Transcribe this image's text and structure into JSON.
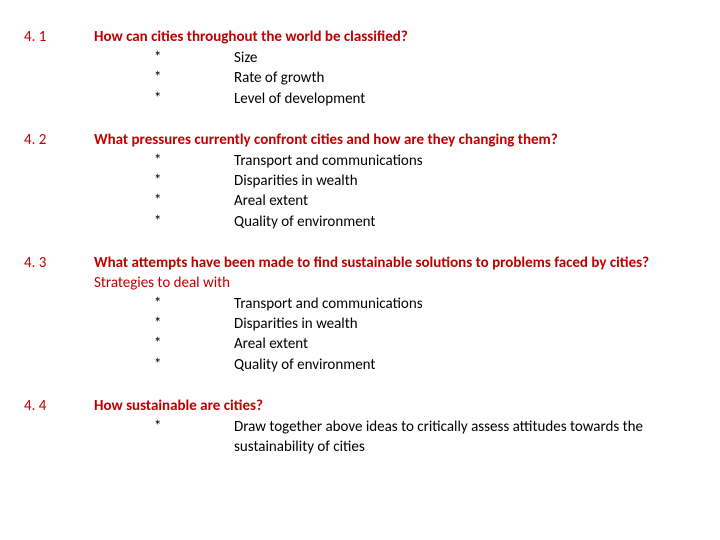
{
  "colors": {
    "accent": "#c00000",
    "text": "#000000",
    "background": "#ffffff"
  },
  "typography": {
    "font_family": "Calibri",
    "base_size_pt": 11,
    "line_height": 1.35
  },
  "sections": [
    {
      "number": "4. 1",
      "question": "How can cities throughout the world be classified?",
      "subheading": null,
      "bullets": [
        "Size",
        "Rate of growth",
        "Level of development"
      ]
    },
    {
      "number": "4. 2",
      "question": "What pressures currently confront cities and how are they changing them?",
      "subheading": null,
      "bullets": [
        "Transport and communications",
        "Disparities in wealth",
        "Areal extent",
        "Quality of environment"
      ]
    },
    {
      "number": "4. 3",
      "question": "What attempts have been made to find sustainable solutions to problems faced by cities?",
      "subheading": "Strategies to deal with",
      "bullets": [
        "Transport and communications",
        "Disparities in wealth",
        "Areal extent",
        "Quality of environment"
      ]
    },
    {
      "number": "4. 4",
      "question": "How sustainable are cities?",
      "subheading": null,
      "bullets": [
        "Draw together above ideas to critically assess attitudes towards the sustainability of cities"
      ]
    }
  ],
  "bullet_marker": "*"
}
